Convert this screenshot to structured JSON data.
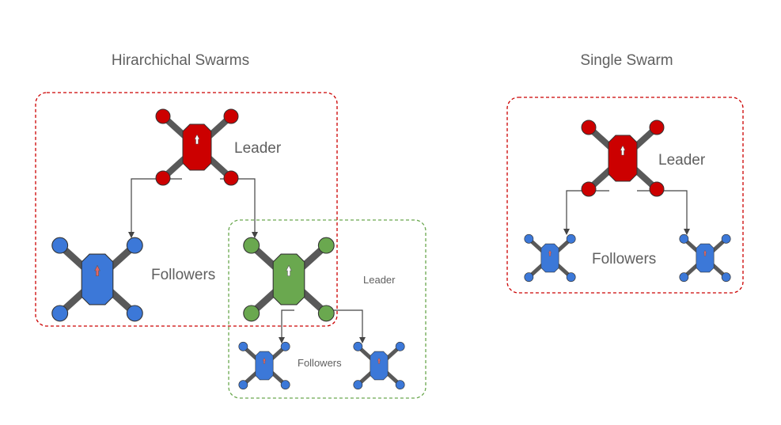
{
  "colors": {
    "red": "#cc0000",
    "blue": "#3c78d8",
    "green": "#6aa84f",
    "arm": "#595959",
    "outline": "#333333",
    "red_box": "#cc0000",
    "green_box": "#6aa84f",
    "arrow": "#444444"
  },
  "hierarchical": {
    "title": "Hirarchichal Swarms",
    "leader_label": "Leader",
    "followers_label": "Followers",
    "sub_leader_label": "Leader",
    "sub_followers_label": "Followers"
  },
  "single": {
    "title": "Single Swarm",
    "leader_label": "Leader",
    "followers_label": "Followers"
  },
  "icons": [
    "drone-icon",
    "arrow-icon"
  ]
}
